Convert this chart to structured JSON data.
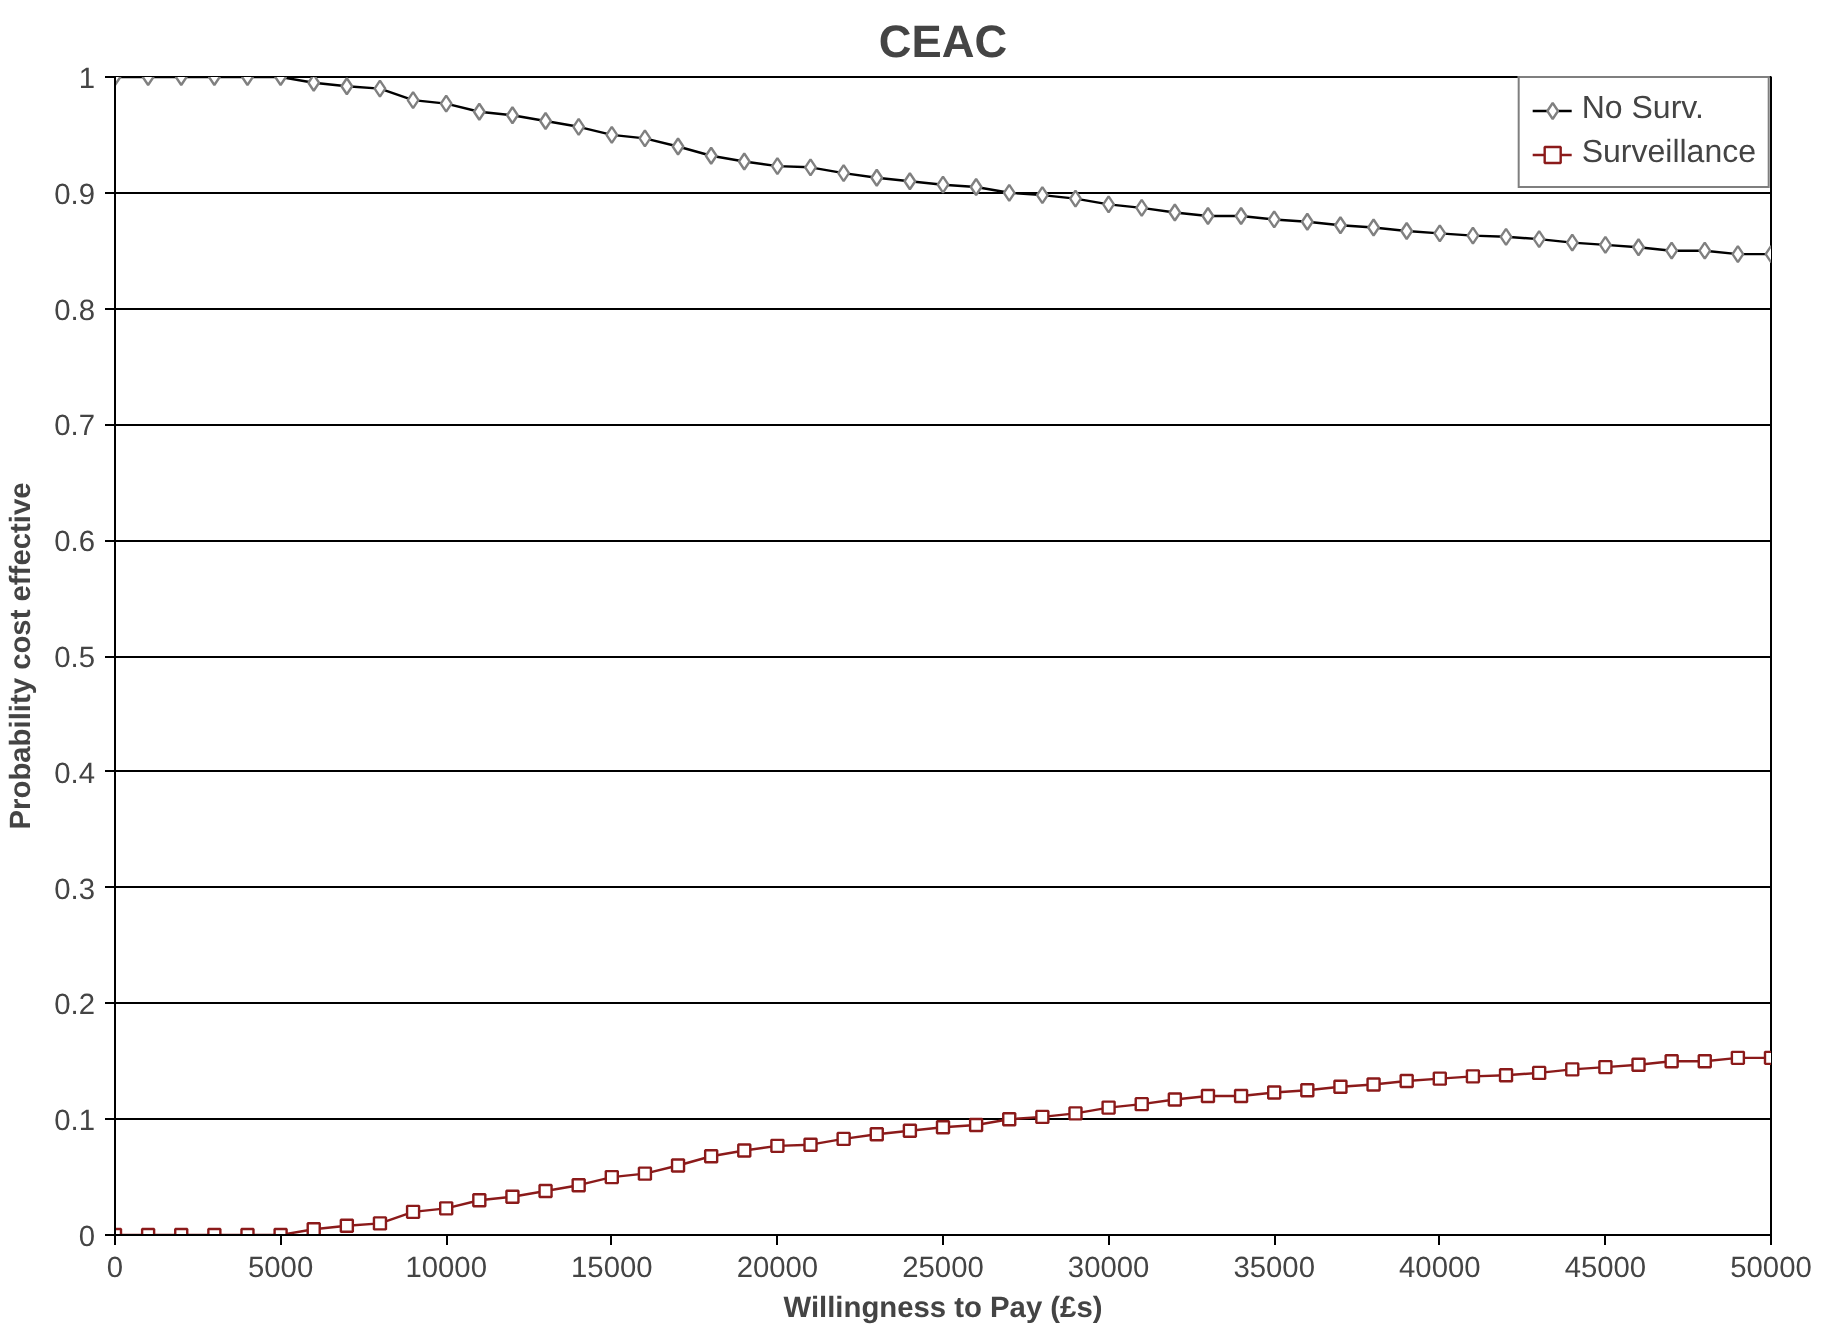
{
  "chart_data": {
    "type": "line",
    "title": "CEAC",
    "xlabel": "Willingness to Pay (£s)",
    "ylabel": "Probability cost effective",
    "x": [
      0,
      1000,
      2000,
      3000,
      4000,
      5000,
      6000,
      7000,
      8000,
      9000,
      10000,
      11000,
      12000,
      13000,
      14000,
      15000,
      16000,
      17000,
      18000,
      19000,
      20000,
      21000,
      22000,
      23000,
      24000,
      25000,
      26000,
      27000,
      28000,
      29000,
      30000,
      31000,
      32000,
      33000,
      34000,
      35000,
      36000,
      37000,
      38000,
      39000,
      40000,
      41000,
      42000,
      43000,
      44000,
      45000,
      46000,
      47000,
      48000,
      49000,
      50000
    ],
    "series": [
      {
        "name": "No Surv.",
        "color": "#000000",
        "marker": "diamond",
        "values": [
          1,
          1,
          1,
          1,
          1,
          1,
          0.995,
          0.992,
          0.99,
          0.98,
          0.977,
          0.97,
          0.967,
          0.962,
          0.957,
          0.95,
          0.947,
          0.94,
          0.932,
          0.927,
          0.923,
          0.922,
          0.917,
          0.913,
          0.91,
          0.907,
          0.905,
          0.9,
          0.898,
          0.895,
          0.89,
          0.887,
          0.883,
          0.88,
          0.88,
          0.877,
          0.875,
          0.872,
          0.87,
          0.867,
          0.865,
          0.863,
          0.862,
          0.86,
          0.857,
          0.855,
          0.853,
          0.85,
          0.85,
          0.847,
          0.847
        ]
      },
      {
        "name": "Surveillance",
        "color": "#8b1a1a",
        "marker": "square",
        "values": [
          0,
          0,
          0,
          0,
          0,
          0,
          0.005,
          0.008,
          0.01,
          0.02,
          0.023,
          0.03,
          0.033,
          0.038,
          0.043,
          0.05,
          0.053,
          0.06,
          0.068,
          0.073,
          0.077,
          0.078,
          0.083,
          0.087,
          0.09,
          0.093,
          0.095,
          0.1,
          0.102,
          0.105,
          0.11,
          0.113,
          0.117,
          0.12,
          0.12,
          0.123,
          0.125,
          0.128,
          0.13,
          0.133,
          0.135,
          0.137,
          0.138,
          0.14,
          0.143,
          0.145,
          0.147,
          0.15,
          0.15,
          0.153,
          0.153
        ]
      }
    ],
    "xlim": [
      0,
      50000
    ],
    "xticks": [
      0,
      5000,
      10000,
      15000,
      20000,
      25000,
      30000,
      35000,
      40000,
      45000,
      50000
    ],
    "ylim": [
      0,
      1
    ],
    "yticks": [
      0,
      0.1,
      0.2,
      0.3,
      0.4,
      0.5,
      0.6,
      0.7,
      0.8,
      0.9,
      1
    ],
    "grid": "y",
    "legend": "top right",
    "line_style": "solid"
  }
}
